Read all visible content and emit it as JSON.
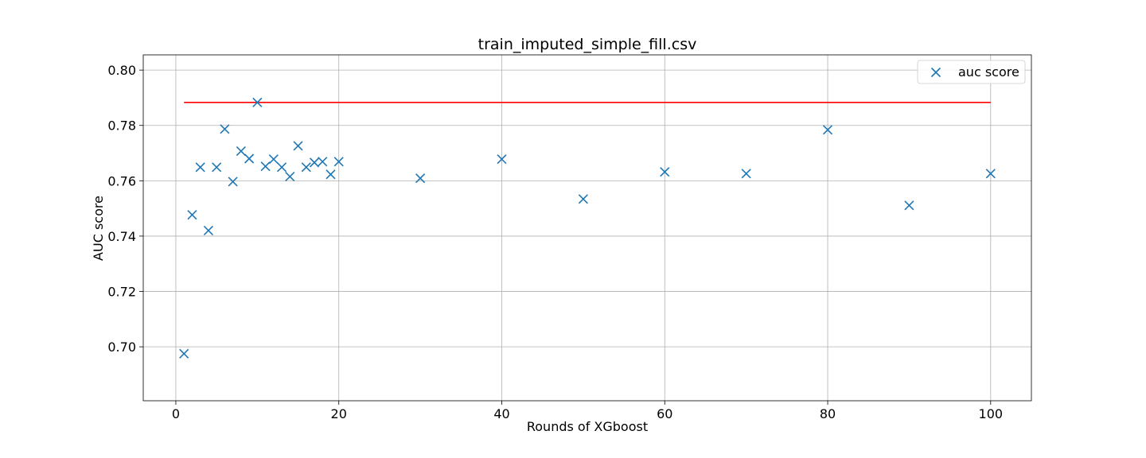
{
  "chart_data": {
    "type": "scatter",
    "title": "train_imputed_simple_fill.csv",
    "xlabel": "Rounds of XGboost",
    "ylabel": "AUC score",
    "xlim": [
      -4,
      105
    ],
    "ylim": [
      0.6805,
      0.8055
    ],
    "xticks": [
      0,
      20,
      40,
      60,
      80,
      100
    ],
    "yticks": [
      0.7,
      0.72,
      0.74,
      0.76,
      0.78,
      0.8
    ],
    "xtick_labels": [
      "0",
      "20",
      "40",
      "60",
      "80",
      "100"
    ],
    "ytick_labels": [
      "0.70",
      "0.72",
      "0.74",
      "0.76",
      "0.78",
      "0.80"
    ],
    "grid": true,
    "legend": {
      "position": "top-right",
      "entries": [
        "auc score"
      ]
    },
    "series": [
      {
        "name": "auc score",
        "marker": "x",
        "color": "#1f77b4",
        "x": [
          1,
          2,
          3,
          4,
          5,
          6,
          7,
          8,
          9,
          10,
          11,
          12,
          13,
          14,
          15,
          16,
          17,
          18,
          19,
          20,
          30,
          40,
          50,
          60,
          70,
          80,
          90,
          100
        ],
        "y": [
          0.6975,
          0.7477,
          0.7649,
          0.742,
          0.7649,
          0.7787,
          0.7597,
          0.7707,
          0.768,
          0.7883,
          0.7652,
          0.7678,
          0.7649,
          0.7615,
          0.7726,
          0.7649,
          0.7666,
          0.7669,
          0.7623,
          0.7669,
          0.7609,
          0.7678,
          0.7534,
          0.7632,
          0.7626,
          0.7784,
          0.7511,
          0.7626
        ]
      }
    ],
    "reference_line": {
      "y": 0.7883,
      "x_range": [
        1,
        100
      ],
      "color": "#ff0000"
    }
  }
}
